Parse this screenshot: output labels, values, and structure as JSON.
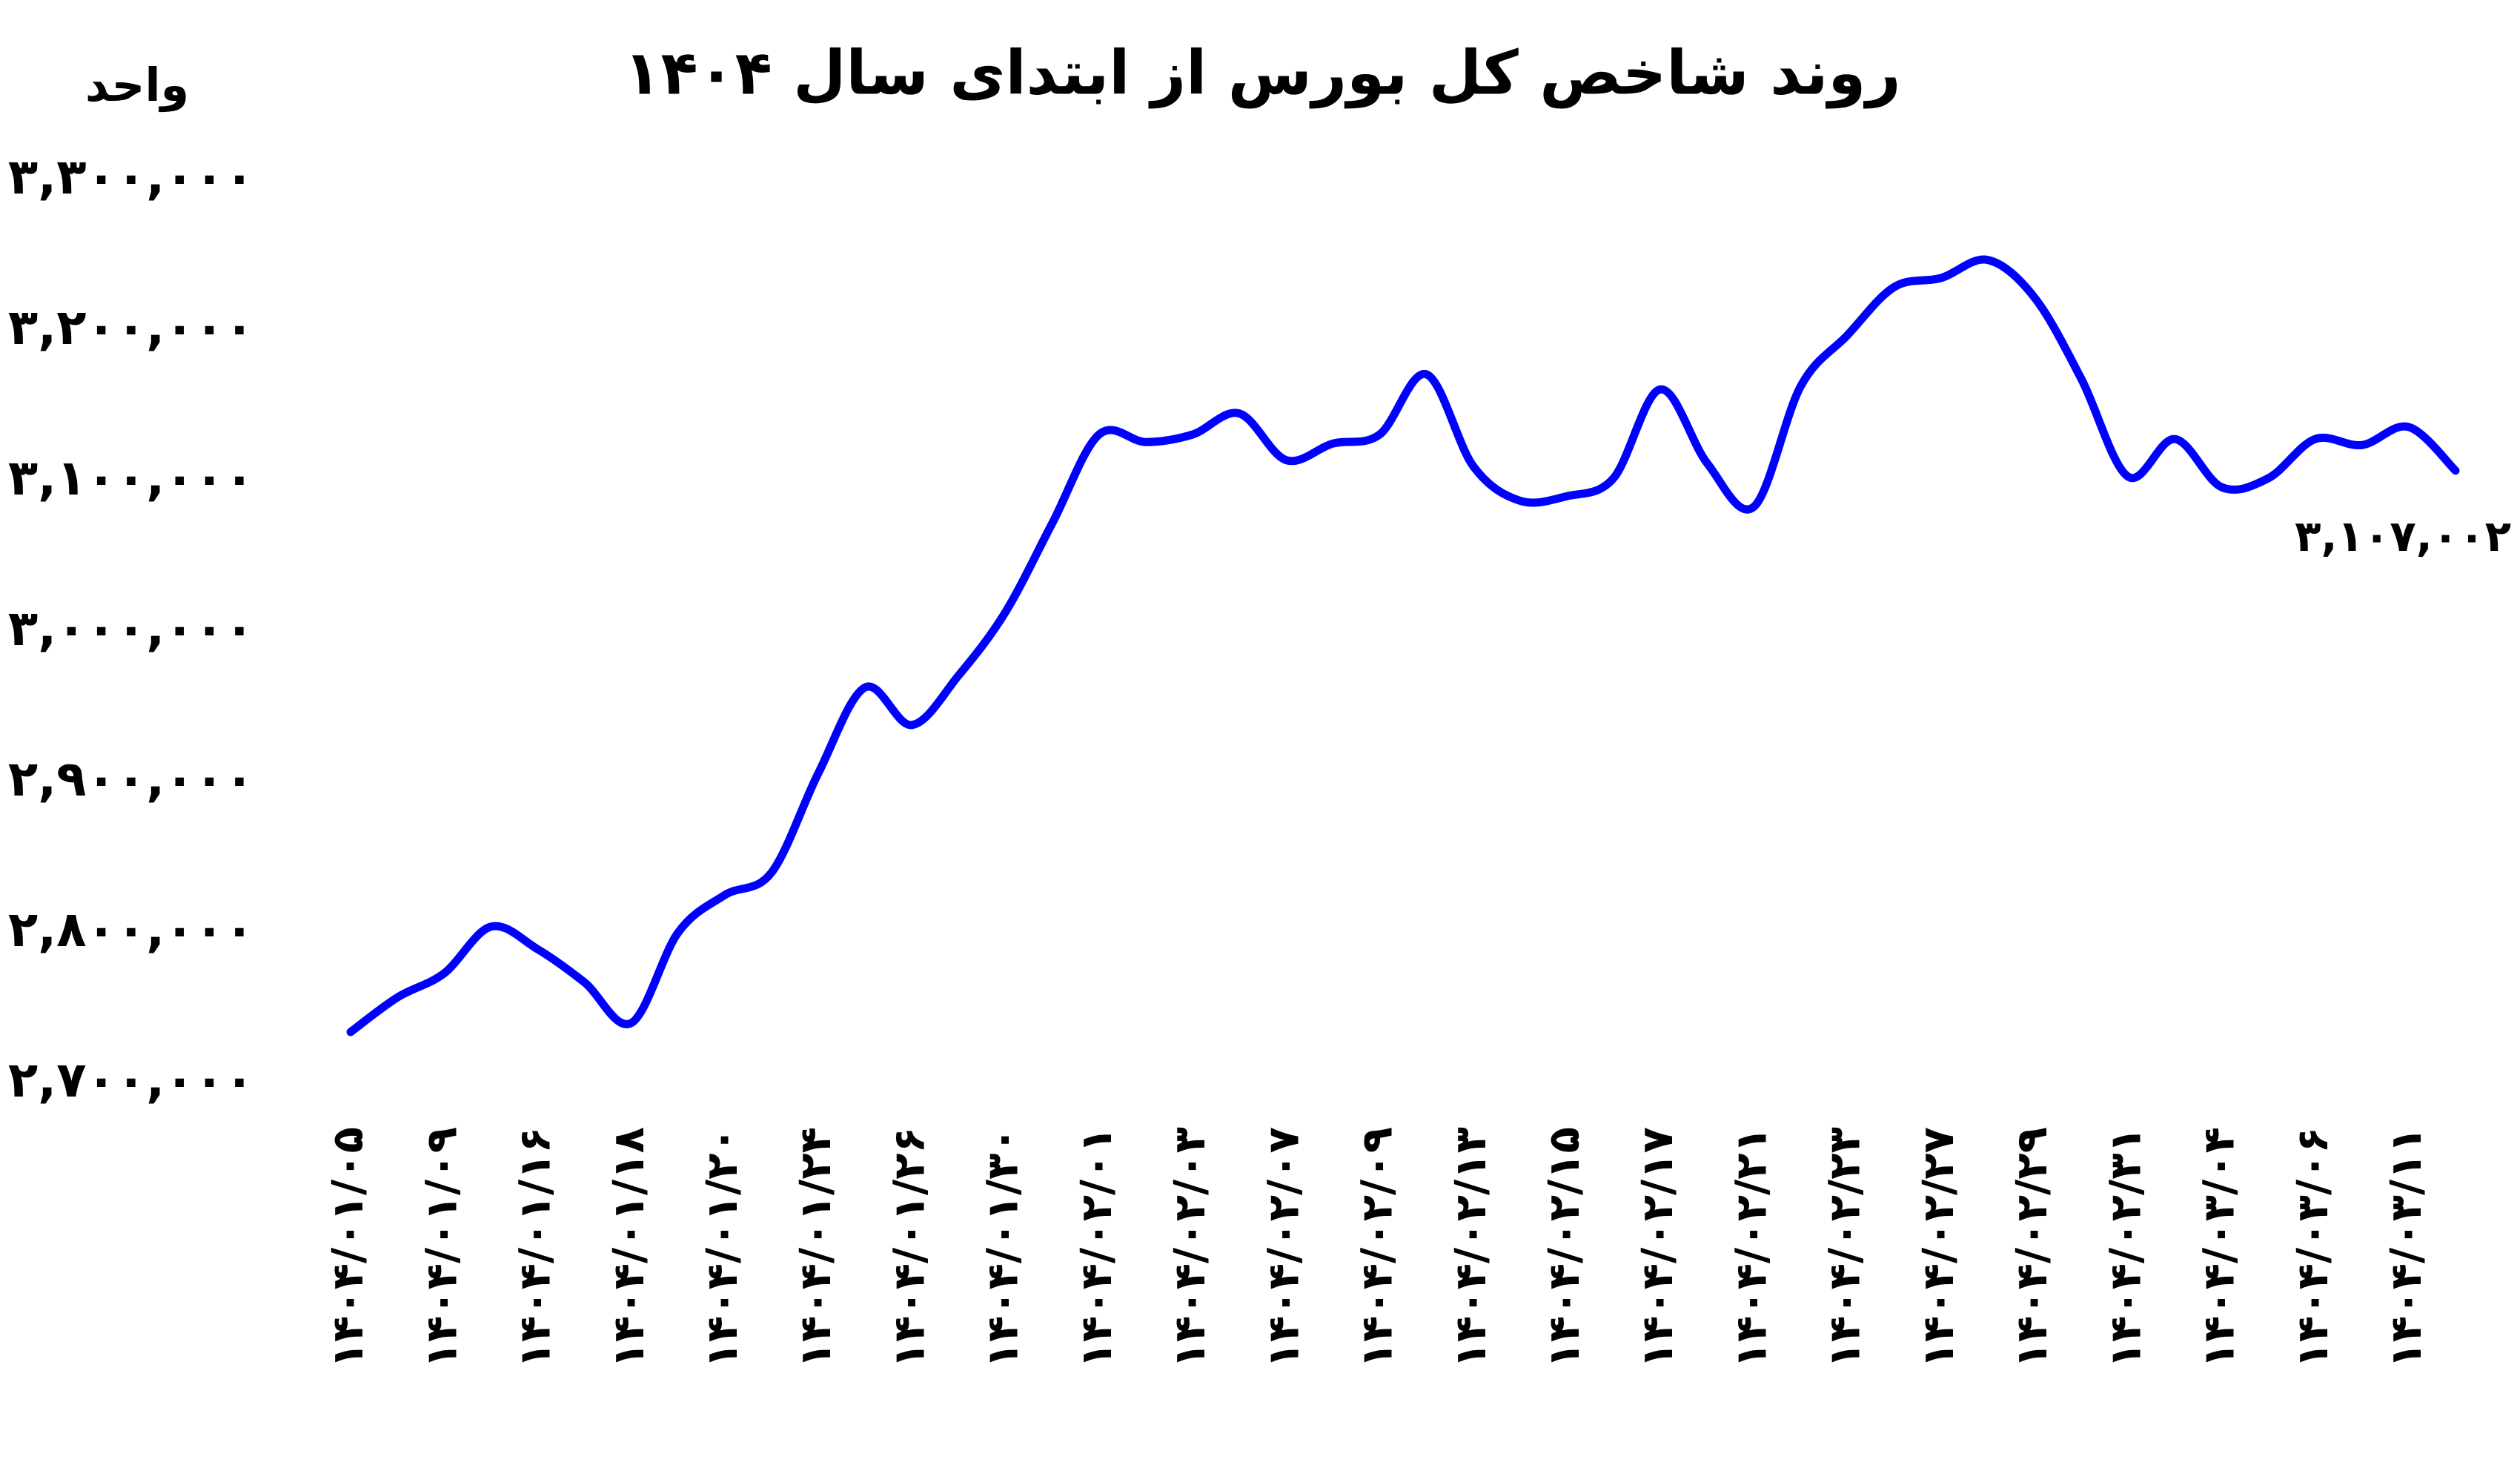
{
  "chart_data": {
    "type": "line",
    "title": "روند شاخص کل بورس از ابتدای سال ۱۴۰۴",
    "y_label": "واحد",
    "categories": [
      "۱۴۰۴/۰۱/۰۵",
      null,
      "۱۴۰۴/۰۱/۰۹",
      null,
      "۱۴۰۴/۰۱/۱۶",
      null,
      "۱۴۰۴/۰۱/۱۸",
      null,
      "۱۴۰۴/۰۱/۲۰",
      null,
      "۱۴۰۴/۰۱/۲۴",
      null,
      "۱۴۰۴/۰۱/۲۶",
      null,
      "۱۴۰۴/۰۱/۳۰",
      null,
      "۱۴۰۴/۰۲/۰۱",
      null,
      "۱۴۰۴/۰۲/۰۳",
      null,
      "۱۴۰۴/۰۲/۰۷",
      null,
      "۱۴۰۴/۰۲/۰۹",
      null,
      "۱۴۰۴/۰۲/۱۳",
      null,
      "۱۴۰۴/۰۲/۱۵",
      null,
      "۱۴۰۴/۰۲/۱۷",
      null,
      "۱۴۰۴/۰۲/۲۱",
      null,
      "۱۴۰۴/۰۲/۲۳",
      null,
      "۱۴۰۴/۰۲/۲۷",
      null,
      "۱۴۰۴/۰۲/۲۹",
      null,
      "۱۴۰۴/۰۲/۳۱",
      null,
      "۱۴۰۴/۰۳/۰۴",
      null,
      "۱۴۰۴/۰۳/۰۶",
      null,
      "۱۴۰۴/۰۳/۱۱",
      null
    ],
    "values": [
      2734000,
      2757000,
      2773000,
      2804000,
      2789000,
      2767000,
      2740000,
      2800000,
      2825000,
      2840000,
      2906000,
      2963000,
      2938000,
      2971000,
      3013000,
      3072000,
      3131000,
      3126000,
      3131000,
      3145000,
      3114000,
      3125000,
      3131000,
      3171000,
      3110000,
      3087000,
      3090000,
      3102000,
      3161000,
      3112000,
      3083000,
      3163000,
      3197000,
      3229000,
      3235000,
      3247000,
      3222000,
      3168000,
      3103000,
      3128000,
      3096000,
      3102000,
      3128000,
      3124000,
      3136000,
      3107002
    ],
    "value_labels": [
      null,
      null,
      null,
      null,
      null,
      null,
      null,
      null,
      null,
      null,
      null,
      null,
      null,
      null,
      null,
      null,
      null,
      null,
      null,
      null,
      null,
      null,
      null,
      null,
      null,
      null,
      null,
      null,
      null,
      null,
      null,
      null,
      null,
      null,
      null,
      null,
      null,
      null,
      null,
      null,
      null,
      null,
      null,
      null,
      null,
      "۳,۱۰۷,۰۰۲"
    ],
    "color": "#0000ff",
    "ylim": [
      2700000,
      3300000
    ],
    "yticks": [
      {
        "value": 2700000,
        "label": "۲,۷۰۰,۰۰۰"
      },
      {
        "value": 2800000,
        "label": "۲,۸۰۰,۰۰۰"
      },
      {
        "value": 2900000,
        "label": "۲,۹۰۰,۰۰۰"
      },
      {
        "value": 3000000,
        "label": "۳,۰۰۰,۰۰۰"
      },
      {
        "value": 3100000,
        "label": "۳,۱۰۰,۰۰۰"
      },
      {
        "value": 3200000,
        "label": "۳,۲۰۰,۰۰۰"
      },
      {
        "value": 3300000,
        "label": "۳,۳۰۰,۰۰۰"
      }
    ],
    "grid": false
  }
}
